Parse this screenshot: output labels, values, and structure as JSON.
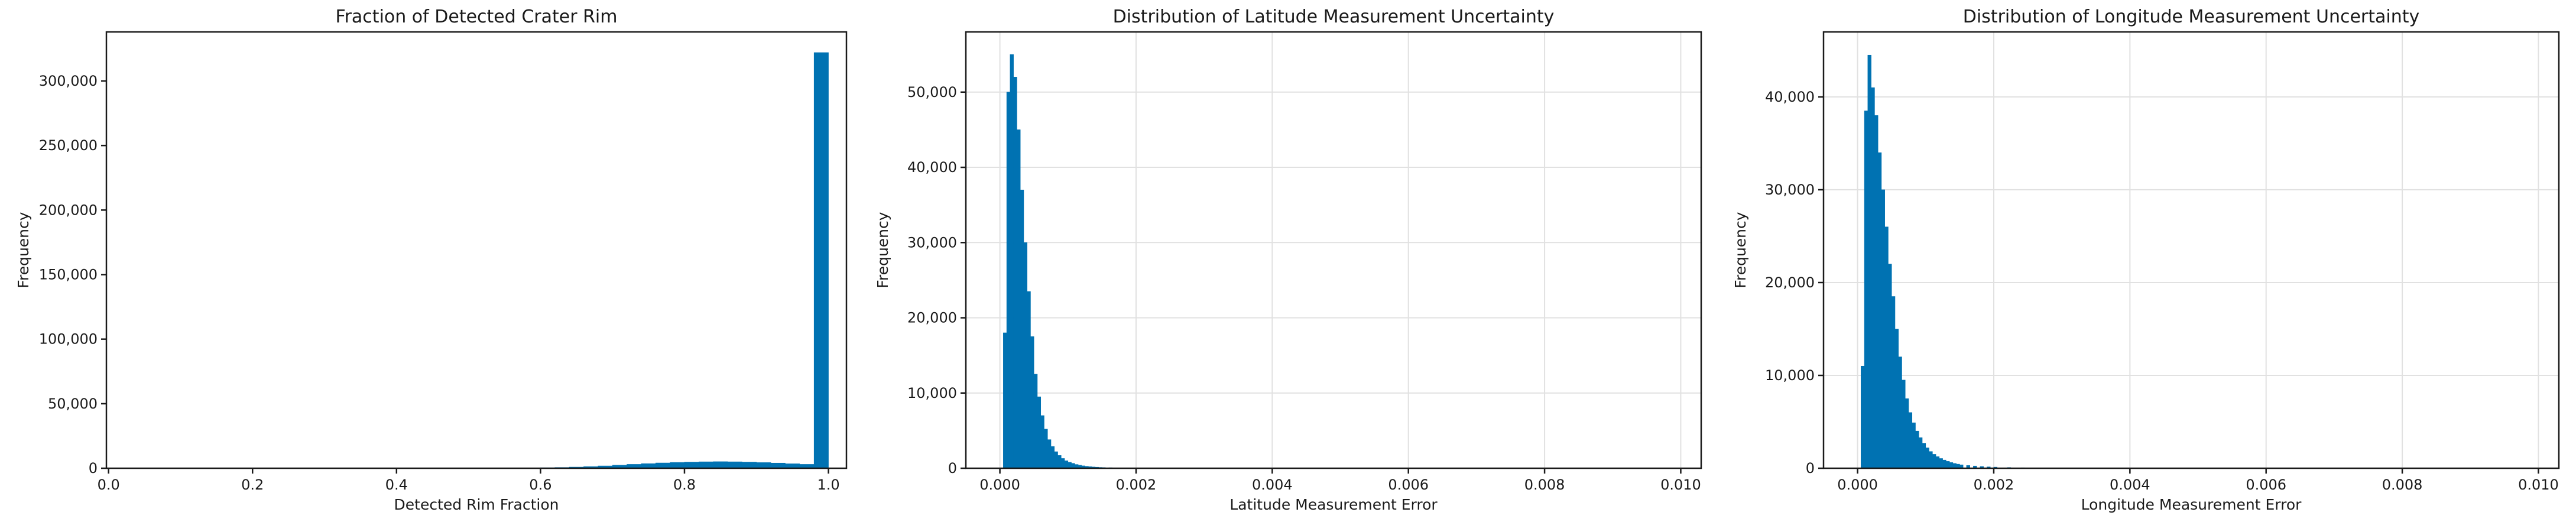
{
  "chart_data": [
    {
      "type": "bar",
      "title": "Fraction of Detected Crater Rim",
      "xlabel": "Detected Rim Fraction",
      "ylabel": "Frequency",
      "xlim": [
        -0.003,
        1.025
      ],
      "ylim": [
        0,
        338000
      ],
      "xticks": [
        "0.0",
        "0.2",
        "0.4",
        "0.6",
        "0.8",
        "1.0"
      ],
      "xtick_values": [
        0.0,
        0.2,
        0.4,
        0.6,
        0.8,
        1.0
      ],
      "yticks": [
        "0",
        "50,000",
        "100,000",
        "150,000",
        "200,000",
        "250,000",
        "300,000"
      ],
      "ytick_values": [
        0,
        50000,
        100000,
        150000,
        200000,
        250000,
        300000
      ],
      "grid": false,
      "color": "#0072b2",
      "bin_width": 0.02,
      "bins_start": [
        0.54,
        0.56,
        0.58,
        0.6,
        0.62,
        0.64,
        0.66,
        0.68,
        0.7,
        0.72,
        0.74,
        0.76,
        0.78,
        0.8,
        0.82,
        0.84,
        0.86,
        0.88,
        0.9,
        0.92,
        0.94,
        0.96,
        0.98
      ],
      "values": [
        80,
        150,
        250,
        400,
        600,
        900,
        1300,
        1800,
        2400,
        3000,
        3600,
        4100,
        4500,
        4800,
        5000,
        5100,
        5000,
        4800,
        4400,
        4000,
        3500,
        3000,
        322000
      ]
    },
    {
      "type": "bar",
      "title": "Distribution of Latitude Measurement Uncertainty",
      "xlabel": "Latitude Measurement Error",
      "ylabel": "Frequency",
      "xlim": [
        -0.0005,
        0.0103
      ],
      "ylim": [
        0,
        58000
      ],
      "xticks": [
        "0.000",
        "0.002",
        "0.004",
        "0.006",
        "0.008",
        "0.010"
      ],
      "xtick_values": [
        0.0,
        0.002,
        0.004,
        0.006,
        0.008,
        0.01
      ],
      "yticks": [
        "0",
        "10,000",
        "20,000",
        "30,000",
        "40,000",
        "50,000"
      ],
      "ytick_values": [
        0,
        10000,
        20000,
        30000,
        40000,
        50000
      ],
      "grid": true,
      "color": "#0072b2",
      "bin_width": 5e-05,
      "bins_start": [
        5e-05,
        0.0001,
        0.00015,
        0.0002,
        0.00025,
        0.0003,
        0.00035,
        0.0004,
        0.00045,
        0.0005,
        0.00055,
        0.0006,
        0.00065,
        0.0007,
        0.00075,
        0.0008,
        0.00085,
        0.0009,
        0.00095,
        0.001,
        0.00105,
        0.0011,
        0.00115,
        0.0012,
        0.00125,
        0.0013,
        0.00135,
        0.0014,
        0.00145,
        0.0015,
        0.0016,
        0.0017,
        0.0018,
        0.0019,
        0.002
      ],
      "values": [
        18000,
        50000,
        55000,
        52000,
        45000,
        37000,
        30000,
        23500,
        17500,
        12500,
        9500,
        7000,
        5200,
        3800,
        2900,
        2200,
        1700,
        1300,
        1000,
        800,
        650,
        500,
        400,
        320,
        260,
        210,
        170,
        140,
        110,
        90,
        70,
        50,
        40,
        30,
        20
      ]
    },
    {
      "type": "bar",
      "title": "Distribution of Longitude Measurement Uncertainty",
      "xlabel": "Longitude Measurement Error",
      "ylabel": "Frequency",
      "xlim": [
        -0.0005,
        0.0103
      ],
      "ylim": [
        0,
        47000
      ],
      "xticks": [
        "0.000",
        "0.002",
        "0.004",
        "0.006",
        "0.008",
        "0.010"
      ],
      "xtick_values": [
        0.0,
        0.002,
        0.004,
        0.006,
        0.008,
        0.01
      ],
      "yticks": [
        "0",
        "10,000",
        "20,000",
        "30,000",
        "40,000"
      ],
      "ytick_values": [
        0,
        10000,
        20000,
        30000,
        40000
      ],
      "grid": true,
      "color": "#0072b2",
      "bin_width": 5e-05,
      "bins_start": [
        5e-05,
        0.0001,
        0.00015,
        0.0002,
        0.00025,
        0.0003,
        0.00035,
        0.0004,
        0.00045,
        0.0005,
        0.00055,
        0.0006,
        0.00065,
        0.0007,
        0.00075,
        0.0008,
        0.00085,
        0.0009,
        0.00095,
        0.001,
        0.00105,
        0.0011,
        0.00115,
        0.0012,
        0.00125,
        0.0013,
        0.00135,
        0.0014,
        0.00145,
        0.0015,
        0.0016,
        0.0017,
        0.0018,
        0.0019,
        0.002,
        0.0022,
        0.0024,
        0.0026,
        0.0028
      ],
      "values": [
        11000,
        38500,
        44500,
        41000,
        38000,
        34000,
        30000,
        26000,
        22000,
        18500,
        15000,
        12000,
        9500,
        7500,
        6000,
        4900,
        4000,
        3300,
        2700,
        2200,
        1800,
        1500,
        1250,
        1050,
        880,
        740,
        620,
        520,
        440,
        370,
        300,
        240,
        190,
        150,
        120,
        80,
        50,
        30,
        20
      ]
    }
  ]
}
